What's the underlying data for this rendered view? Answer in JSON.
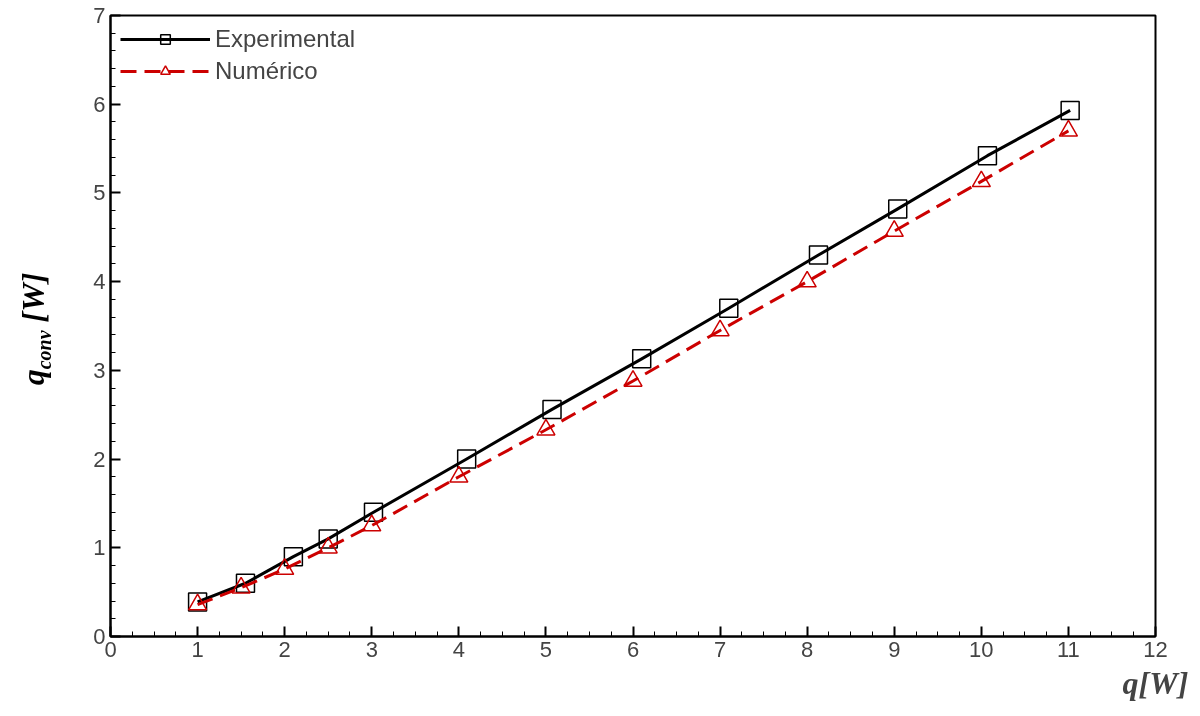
{
  "chart_data": {
    "type": "line",
    "xlabel": "q[W]",
    "ylabel": "q$_{conv}$ [W]",
    "xlim": [
      0,
      12
    ],
    "ylim": [
      0,
      7
    ],
    "xticks": [
      0,
      1,
      2,
      3,
      4,
      5,
      6,
      7,
      8,
      9,
      10,
      11,
      12
    ],
    "yticks": [
      0,
      1,
      2,
      3,
      4,
      5,
      6,
      7
    ],
    "grid": false,
    "legend": "top left",
    "series": [
      {
        "name": "Experimental",
        "color": "#000000",
        "marker": "square",
        "line_style": "solid",
        "x": [
          1,
          1.55,
          2.1,
          2.5,
          3.02,
          4.09,
          5.07,
          6.1,
          7.1,
          8.13,
          9.04,
          10.07,
          11.02
        ],
        "values": [
          0.39,
          0.6,
          0.9,
          1.1,
          1.4,
          2.0,
          2.56,
          3.13,
          3.7,
          4.3,
          4.82,
          5.42,
          5.93
        ]
      },
      {
        "name": "Numérico",
        "color": "#cc0000",
        "marker": "triangle",
        "line_style": "dashed",
        "x": [
          1,
          1.5,
          2,
          2.5,
          3,
          4,
          5,
          6,
          7,
          8,
          9,
          10,
          11
        ],
        "values": [
          0.36,
          0.55,
          0.76,
          1.0,
          1.25,
          1.8,
          2.33,
          2.88,
          3.45,
          4.0,
          4.57,
          5.13,
          5.7
        ]
      }
    ]
  }
}
